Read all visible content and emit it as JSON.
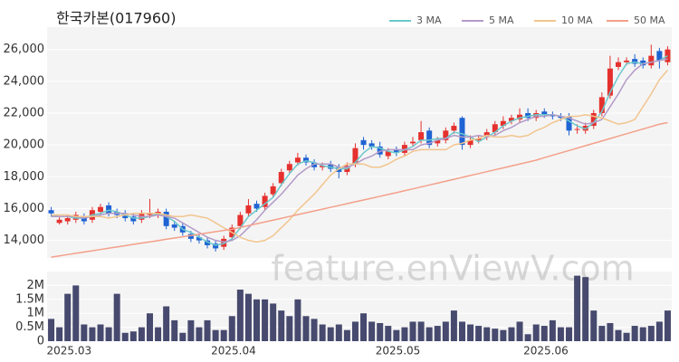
{
  "chart_data": [
    {
      "type": "candlestick",
      "title": "한국카본(017960)",
      "watermark": "feature.enViewV.com",
      "up_color": "#e5312e",
      "down_color": "#1f63d4",
      "grid": true,
      "legend": "top-right",
      "ylim": [
        12900,
        27400
      ],
      "yticks": [
        {
          "value": 14000,
          "label": "14,000"
        },
        {
          "value": 16000,
          "label": "16,000"
        },
        {
          "value": 18000,
          "label": "18,000"
        },
        {
          "value": 20000,
          "label": "20,000"
        },
        {
          "value": 22000,
          "label": "22,000"
        },
        {
          "value": 24000,
          "label": "24,000"
        },
        {
          "value": 26000,
          "label": "26,000"
        }
      ],
      "open": [
        15900,
        15100,
        15200,
        15300,
        15500,
        15300,
        15800,
        16200,
        15800,
        15700,
        15500,
        15300,
        15600,
        15600,
        15800,
        15000,
        14900,
        14400,
        14200,
        14000,
        13800,
        13600,
        14200,
        14900,
        15700,
        16300,
        16100,
        16900,
        17600,
        18400,
        18900,
        19200,
        18900,
        18600,
        18800,
        18600,
        18300,
        18800,
        20300,
        20100,
        19900,
        19300,
        19700,
        19500,
        20100,
        20300,
        20900,
        20100,
        20300,
        20900,
        21700,
        20000,
        20300,
        20500,
        20800,
        21200,
        21500,
        21600,
        22000,
        21700,
        22100,
        21900,
        21800,
        21800,
        21000,
        20900,
        21200,
        22000,
        23100,
        24900,
        25200,
        25400,
        25300,
        25000,
        25900,
        25200
      ],
      "high": [
        16100,
        15500,
        15600,
        15800,
        15700,
        16100,
        16300,
        16400,
        16000,
        15900,
        15700,
        15900,
        16600,
        16000,
        16000,
        15200,
        15100,
        14600,
        14400,
        14200,
        14000,
        14300,
        15000,
        15800,
        16600,
        16500,
        17000,
        17600,
        18500,
        19000,
        19500,
        19400,
        19100,
        18900,
        19000,
        18800,
        18900,
        20100,
        20500,
        20300,
        20200,
        19800,
        19900,
        20200,
        20500,
        21500,
        21100,
        20500,
        21100,
        21400,
        21800,
        20600,
        20600,
        21000,
        21500,
        21800,
        21900,
        22300,
        22300,
        22200,
        22300,
        22100,
        22000,
        22000,
        21300,
        21400,
        22200,
        23300,
        25600,
        25500,
        25500,
        25700,
        25500,
        26300,
        26100,
        26200
      ],
      "low": [
        15500,
        15000,
        15000,
        15100,
        15000,
        15100,
        15600,
        15500,
        15400,
        15200,
        15000,
        15100,
        15400,
        15400,
        14700,
        14600,
        14300,
        13900,
        13800,
        13500,
        13300,
        13400,
        14000,
        14700,
        15500,
        15800,
        15900,
        16700,
        17400,
        18200,
        18700,
        18700,
        18400,
        18400,
        18300,
        17900,
        18100,
        18600,
        19700,
        19700,
        19200,
        19100,
        19300,
        19300,
        19900,
        20100,
        19800,
        19900,
        20100,
        20700,
        19700,
        19800,
        20100,
        20300,
        20600,
        21000,
        21300,
        21400,
        21500,
        21500,
        21700,
        21600,
        21500,
        20600,
        20700,
        20700,
        21000,
        21800,
        22900,
        24700,
        25000,
        24900,
        24800,
        24800,
        24800,
        25000
      ],
      "close": [
        15700,
        15300,
        15400,
        15600,
        15200,
        15900,
        16100,
        15700,
        15600,
        15400,
        15200,
        15700,
        15700,
        15800,
        14900,
        14800,
        14500,
        14100,
        14000,
        13700,
        13500,
        14100,
        14800,
        15600,
        16200,
        16000,
        16800,
        17400,
        18300,
        18800,
        19200,
        18900,
        18600,
        18700,
        18500,
        18300,
        18700,
        19800,
        20000,
        19900,
        19400,
        19600,
        19500,
        20000,
        20200,
        20800,
        20000,
        20300,
        20900,
        21200,
        20000,
        20300,
        20400,
        20800,
        21300,
        21500,
        21700,
        21900,
        21700,
        22000,
        21900,
        21800,
        21700,
        20900,
        21000,
        21200,
        22000,
        23000,
        24800,
        25200,
        25300,
        25100,
        25000,
        25600,
        25300,
        26000
      ],
      "series": [
        {
          "name": "3 MA",
          "color": "#6cc8cc",
          "values": [
            15600,
            15500,
            15500,
            15400,
            15400,
            15600,
            15700,
            15900,
            15800,
            15600,
            15400,
            15400,
            15500,
            15700,
            15500,
            15200,
            14700,
            14500,
            14200,
            13900,
            13700,
            13800,
            14100,
            14800,
            15500,
            15900,
            16300,
            16700,
            17500,
            18200,
            18800,
            19000,
            18900,
            18700,
            18600,
            18500,
            18500,
            18900,
            19500,
            19900,
            19800,
            19600,
            19500,
            19700,
            19900,
            20300,
            20300,
            20400,
            20400,
            20800,
            20700,
            20500,
            20200,
            20500,
            20800,
            21200,
            21500,
            21700,
            21800,
            21900,
            21900,
            21900,
            21800,
            21500,
            21200,
            21000,
            21400,
            22100,
            23300,
            24300,
            25100,
            25200,
            25100,
            25200,
            25300,
            25600
          ]
        },
        {
          "name": "5 MA",
          "color": "#b39bc8",
          "values": [
            15500,
            15500,
            15500,
            15500,
            15400,
            15500,
            15600,
            15700,
            15700,
            15700,
            15600,
            15500,
            15500,
            15600,
            15500,
            15400,
            15100,
            14800,
            14500,
            14200,
            14000,
            13900,
            14000,
            14300,
            14800,
            15300,
            15900,
            16400,
            16900,
            17500,
            18100,
            18500,
            18800,
            18800,
            18800,
            18600,
            18600,
            18800,
            19100,
            19300,
            19600,
            19700,
            19700,
            19700,
            19700,
            20000,
            20100,
            20300,
            20400,
            20600,
            20500,
            20500,
            20600,
            20500,
            20600,
            20900,
            21100,
            21400,
            21600,
            21800,
            21800,
            21900,
            21800,
            21700,
            21500,
            21300,
            21400,
            21600,
            22400,
            23200,
            24100,
            24700,
            25100,
            25200,
            25300,
            25400
          ]
        },
        {
          "name": "10 MA",
          "color": "#f2c58e",
          "values": [
            15600,
            15600,
            15600,
            15500,
            15500,
            15500,
            15500,
            15400,
            15500,
            15600,
            15700,
            15700,
            15700,
            15700,
            15600,
            15500,
            15500,
            15600,
            15500,
            15400,
            15100,
            14800,
            14500,
            14200,
            14000,
            13900,
            14000,
            14300,
            14800,
            15300,
            15900,
            16400,
            16900,
            17500,
            18100,
            18500,
            18800,
            18800,
            18800,
            18600,
            18600,
            18800,
            19100,
            19300,
            19600,
            19700,
            19700,
            19700,
            19700,
            20000,
            20100,
            20300,
            20400,
            20600,
            20500,
            20500,
            20600,
            20500,
            20600,
            20900,
            21100,
            21400,
            21600,
            21800,
            21800,
            21900,
            21800,
            21700,
            21500,
            21300,
            21400,
            21600,
            22400,
            23200,
            24100,
            24700
          ]
        },
        {
          "name": "50 MA",
          "color": "#f4a08a",
          "values": [
            12950,
            13030,
            13110,
            13190,
            13270,
            13350,
            13430,
            13510,
            13590,
            13670,
            13750,
            13830,
            13910,
            13990,
            14070,
            14150,
            14230,
            14310,
            14390,
            14470,
            14550,
            14630,
            14700,
            14815,
            14930,
            15045,
            15160,
            15275,
            15390,
            15505,
            15620,
            15735,
            15850,
            15965,
            16080,
            16195,
            16310,
            16425,
            16540,
            16655,
            16770,
            16885,
            17000,
            17120,
            17240,
            17360,
            17480,
            17600,
            17720,
            17840,
            17960,
            18080,
            18200,
            18320,
            18440,
            18560,
            18680,
            18800,
            18920,
            19040,
            19200,
            19350,
            19500,
            19650,
            19800,
            19950,
            20100,
            20250,
            20400,
            20550,
            20700,
            20850,
            21000,
            21150,
            21300,
            21400
          ]
        }
      ]
    },
    {
      "type": "bar",
      "color": "#474a6e",
      "grid": true,
      "ylim": [
        0,
        2500000
      ],
      "yticks": [
        0,
        {
          "value": 500000,
          "label": "0.5M"
        },
        {
          "value": 1000000,
          "label": "1M"
        },
        {
          "value": 1500000,
          "label": "1.5M"
        },
        {
          "value": 2000000,
          "label": "2M"
        }
      ],
      "categories": [
        "2025.03",
        null,
        null,
        null,
        null,
        null,
        null,
        null,
        null,
        null,
        null,
        null,
        null,
        null,
        null,
        null,
        null,
        null,
        null,
        null,
        "2025.04",
        null,
        null,
        null,
        null,
        null,
        null,
        null,
        null,
        null,
        null,
        null,
        null,
        null,
        null,
        null,
        null,
        null,
        null,
        null,
        "2025.05",
        null,
        null,
        null,
        null,
        null,
        null,
        null,
        null,
        null,
        null,
        null,
        null,
        null,
        null,
        null,
        null,
        null,
        "2025.06",
        null,
        null,
        null,
        null,
        null,
        null,
        null,
        null,
        null,
        null,
        null,
        null,
        null,
        null,
        null,
        null,
        null
      ],
      "values": [
        800000,
        500000,
        1700000,
        2000000,
        600000,
        500000,
        600000,
        500000,
        1700000,
        300000,
        350000,
        500000,
        1000000,
        500000,
        1250000,
        750000,
        300000,
        750000,
        500000,
        750000,
        400000,
        400000,
        900000,
        1850000,
        1700000,
        1500000,
        1500000,
        1350000,
        1100000,
        900000,
        1500000,
        900000,
        800000,
        600000,
        500000,
        600000,
        400000,
        700000,
        1000000,
        700000,
        650000,
        550000,
        400000,
        500000,
        700000,
        700000,
        500000,
        550000,
        700000,
        1100000,
        700000,
        600000,
        550000,
        500000,
        450000,
        400000,
        500000,
        700000,
        250000,
        600000,
        550000,
        750000,
        500000,
        500000,
        2350000,
        2300000,
        1100000,
        550000,
        650000,
        400000,
        300000,
        550000,
        500000,
        550000,
        700000,
        1100000
      ]
    }
  ]
}
